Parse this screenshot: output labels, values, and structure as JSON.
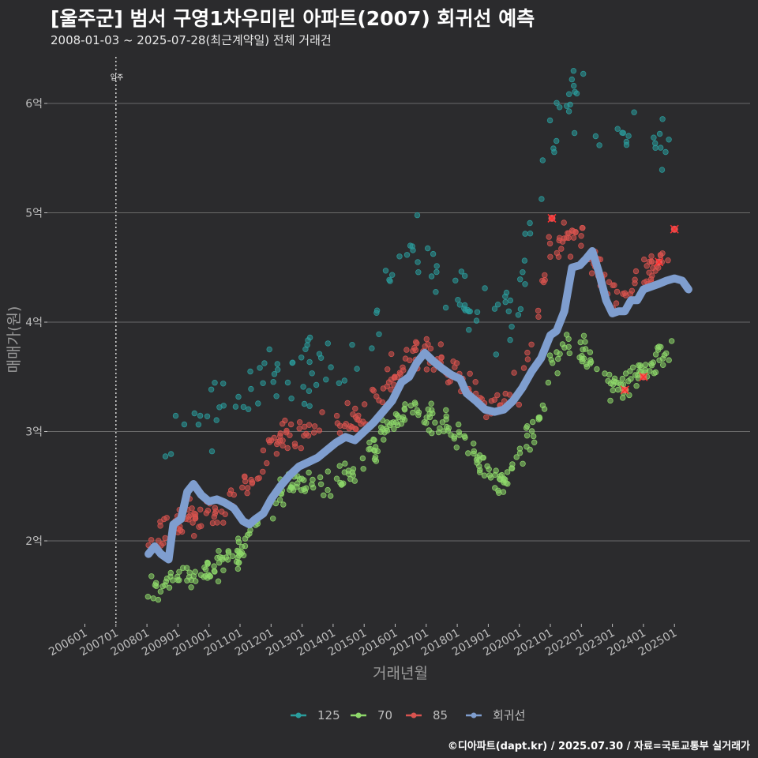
{
  "chart_data": {
    "type": "scatter",
    "title": "[울주군] 범서 구영1차우미린 아파트(2007) 회귀선 예측",
    "subtitle": "2008-01-03 ~ 2025-07-28(최근계약일) 전체 거래건",
    "xlabel": "거래년월",
    "ylabel": "매매가(원)",
    "footer": "©디아파트(dapt.kr) / 2025.07.30 / 자료=국토교통부 실거래가",
    "annotation": {
      "text": "입주",
      "x": 2007.0
    },
    "xlim": [
      2005.5,
      2025.8
    ],
    "ylim": [
      1.26,
      6.55
    ],
    "x_ticks": [
      "200601",
      "200701",
      "200801",
      "200901",
      "201001",
      "201101",
      "201201",
      "201301",
      "201401",
      "201501",
      "201601",
      "201701",
      "201801",
      "201901",
      "202001",
      "202101",
      "202201",
      "202301",
      "202401",
      "202501"
    ],
    "y_ticks": [
      {
        "value": 2,
        "label": "2억"
      },
      {
        "value": 3,
        "label": "3억"
      },
      {
        "value": 4,
        "label": "4억"
      },
      {
        "value": 5,
        "label": "5억"
      },
      {
        "value": 6,
        "label": "6억"
      }
    ],
    "grid": true,
    "legend_position": "bottom",
    "colors": {
      "125": "#2a9d9d",
      "70": "#8ed86a",
      "85": "#d9534f",
      "회귀선": "#7f9ecf",
      "background": "#2b2b2d",
      "grid": "#6a6a6a"
    },
    "series": [
      {
        "name": "125",
        "anchors": [
          [
            2008.5,
            2.97
          ],
          [
            2009.0,
            2.95
          ],
          [
            2010.0,
            3.15
          ],
          [
            2011.0,
            3.3
          ],
          [
            2012.0,
            3.45
          ],
          [
            2013.0,
            3.55
          ],
          [
            2014.0,
            3.55
          ],
          [
            2015.0,
            3.78
          ],
          [
            2015.5,
            4.2
          ],
          [
            2016.0,
            4.5
          ],
          [
            2016.5,
            4.65
          ],
          [
            2017.0,
            4.55
          ],
          [
            2018.0,
            4.3
          ],
          [
            2019.0,
            3.95
          ],
          [
            2020.0,
            4.2
          ],
          [
            2020.5,
            4.9
          ],
          [
            2021.0,
            5.8
          ],
          [
            2021.5,
            6.1
          ],
          [
            2022.0,
            6.0
          ],
          [
            2023.0,
            5.7
          ],
          [
            2024.0,
            5.75
          ],
          [
            2025.0,
            5.5
          ]
        ],
        "spread": 0.28,
        "count": 150,
        "highlights": []
      },
      {
        "name": "70",
        "anchors": [
          [
            2008.0,
            1.55
          ],
          [
            2009.0,
            1.68
          ],
          [
            2010.0,
            1.72
          ],
          [
            2011.0,
            1.9
          ],
          [
            2012.0,
            2.35
          ],
          [
            2013.0,
            2.55
          ],
          [
            2014.0,
            2.5
          ],
          [
            2015.0,
            2.7
          ],
          [
            2016.0,
            3.15
          ],
          [
            2016.5,
            3.25
          ],
          [
            2017.0,
            3.2
          ],
          [
            2018.0,
            2.95
          ],
          [
            2019.0,
            2.62
          ],
          [
            2019.5,
            2.55
          ],
          [
            2020.0,
            2.8
          ],
          [
            2020.7,
            3.15
          ],
          [
            2021.0,
            3.6
          ],
          [
            2021.5,
            3.8
          ],
          [
            2022.0,
            3.75
          ],
          [
            2023.0,
            3.4
          ],
          [
            2024.0,
            3.55
          ],
          [
            2025.0,
            3.75
          ]
        ],
        "spread": 0.12,
        "count": 360,
        "highlights": [
          [
            2023.4,
            3.38
          ],
          [
            2024.0,
            3.5
          ]
        ]
      },
      {
        "name": "85",
        "anchors": [
          [
            2008.0,
            1.9
          ],
          [
            2009.0,
            2.2
          ],
          [
            2010.0,
            2.2
          ],
          [
            2011.0,
            2.4
          ],
          [
            2012.0,
            2.85
          ],
          [
            2013.0,
            3.0
          ],
          [
            2014.0,
            3.1
          ],
          [
            2015.0,
            3.1
          ],
          [
            2016.0,
            3.55
          ],
          [
            2017.0,
            3.75
          ],
          [
            2018.0,
            3.5
          ],
          [
            2019.0,
            3.2
          ],
          [
            2020.0,
            3.4
          ],
          [
            2020.5,
            3.8
          ],
          [
            2021.0,
            4.7
          ],
          [
            2022.0,
            4.75
          ],
          [
            2023.0,
            4.25
          ],
          [
            2024.0,
            4.4
          ],
          [
            2025.0,
            4.7
          ]
        ],
        "spread": 0.15,
        "count": 300,
        "highlights": [
          [
            2021.05,
            4.95
          ],
          [
            2024.5,
            4.55
          ],
          [
            2025.0,
            4.85
          ]
        ]
      },
      {
        "name": "회귀선",
        "type": "line",
        "points": [
          [
            2008.05,
            1.88
          ],
          [
            2008.25,
            1.95
          ],
          [
            2008.45,
            1.88
          ],
          [
            2008.7,
            1.83
          ],
          [
            2008.85,
            2.15
          ],
          [
            2009.1,
            2.2
          ],
          [
            2009.3,
            2.45
          ],
          [
            2009.5,
            2.52
          ],
          [
            2009.75,
            2.42
          ],
          [
            2010.0,
            2.36
          ],
          [
            2010.25,
            2.38
          ],
          [
            2010.5,
            2.35
          ],
          [
            2010.8,
            2.3
          ],
          [
            2011.1,
            2.18
          ],
          [
            2011.3,
            2.15
          ],
          [
            2011.5,
            2.2
          ],
          [
            2011.75,
            2.25
          ],
          [
            2012.0,
            2.38
          ],
          [
            2012.3,
            2.5
          ],
          [
            2012.6,
            2.6
          ],
          [
            2012.9,
            2.68
          ],
          [
            2013.2,
            2.72
          ],
          [
            2013.5,
            2.76
          ],
          [
            2013.8,
            2.83
          ],
          [
            2014.1,
            2.9
          ],
          [
            2014.4,
            2.95
          ],
          [
            2014.7,
            2.92
          ],
          [
            2015.0,
            3.0
          ],
          [
            2015.3,
            3.08
          ],
          [
            2015.6,
            3.18
          ],
          [
            2015.9,
            3.28
          ],
          [
            2016.2,
            3.45
          ],
          [
            2016.45,
            3.5
          ],
          [
            2016.7,
            3.63
          ],
          [
            2016.95,
            3.72
          ],
          [
            2017.2,
            3.65
          ],
          [
            2017.5,
            3.58
          ],
          [
            2017.8,
            3.52
          ],
          [
            2018.1,
            3.48
          ],
          [
            2018.3,
            3.35
          ],
          [
            2018.6,
            3.28
          ],
          [
            2018.9,
            3.2
          ],
          [
            2019.2,
            3.18
          ],
          [
            2019.5,
            3.2
          ],
          [
            2019.8,
            3.28
          ],
          [
            2020.1,
            3.4
          ],
          [
            2020.4,
            3.55
          ],
          [
            2020.7,
            3.67
          ],
          [
            2021.0,
            3.88
          ],
          [
            2021.2,
            3.92
          ],
          [
            2021.45,
            4.1
          ],
          [
            2021.7,
            4.5
          ],
          [
            2021.95,
            4.52
          ],
          [
            2022.15,
            4.58
          ],
          [
            2022.35,
            4.65
          ],
          [
            2022.55,
            4.47
          ],
          [
            2022.8,
            4.2
          ],
          [
            2023.0,
            4.08
          ],
          [
            2023.2,
            4.1
          ],
          [
            2023.4,
            4.1
          ],
          [
            2023.6,
            4.2
          ],
          [
            2023.8,
            4.2
          ],
          [
            2024.0,
            4.3
          ],
          [
            2024.3,
            4.33
          ],
          [
            2024.5,
            4.35
          ],
          [
            2024.75,
            4.38
          ],
          [
            2025.0,
            4.4
          ],
          [
            2025.25,
            4.38
          ],
          [
            2025.45,
            4.3
          ]
        ]
      }
    ]
  }
}
